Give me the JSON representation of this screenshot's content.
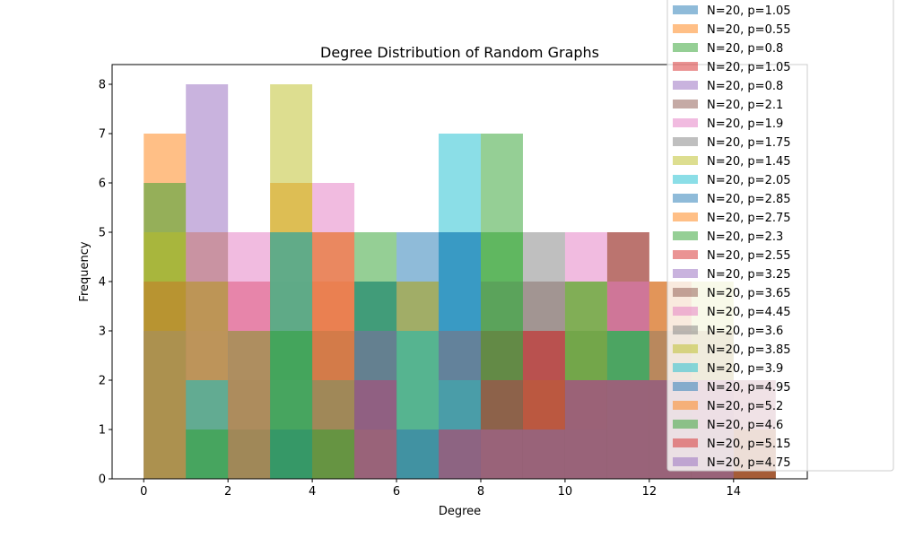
{
  "chart_data": {
    "type": "bar",
    "title": "Degree Distribution of Random Graphs",
    "xlabel": "Degree",
    "ylabel": "Frequency",
    "xlim": [
      -0.75,
      15.75
    ],
    "ylim": [
      0,
      8.4
    ],
    "xticks": [
      0,
      2,
      4,
      6,
      8,
      10,
      12,
      14
    ],
    "yticks": [
      0,
      1,
      2,
      3,
      4,
      5,
      6,
      7,
      8
    ],
    "bin_width": 1,
    "bar_alpha": 0.5,
    "legend_position": "top-right",
    "x": [
      0,
      1,
      2,
      3,
      4,
      5,
      6,
      7,
      8,
      9,
      10,
      11,
      12,
      13,
      14
    ],
    "series": [
      {
        "name": "N=20, p=1.05",
        "color": "#1f77b4",
        "values": [
          3,
          2,
          0,
          4,
          2,
          4,
          5,
          5,
          1,
          0,
          0,
          0,
          0,
          0,
          0
        ]
      },
      {
        "name": "N=20, p=0.55",
        "color": "#ff7f0e",
        "values": [
          7,
          5,
          2,
          6,
          4,
          1,
          0,
          0,
          0,
          0,
          0,
          0,
          0,
          0,
          0
        ]
      },
      {
        "name": "N=20, p=0.8",
        "color": "#2ca02c",
        "values": [
          6,
          3,
          3,
          5,
          2,
          3,
          3,
          1,
          0,
          0,
          0,
          0,
          0,
          0,
          0
        ]
      },
      {
        "name": "N=20, p=1.05",
        "color": "#d62728",
        "values": [
          4,
          4,
          4,
          5,
          3,
          2,
          1,
          2,
          0,
          0,
          0,
          0,
          0,
          0,
          0
        ]
      },
      {
        "name": "N=20, p=0.8",
        "color": "#9467bd",
        "values": [
          3,
          8,
          3,
          3,
          2,
          1,
          0,
          0,
          0,
          0,
          0,
          0,
          0,
          0,
          0
        ]
      },
      {
        "name": "N=20, p=2.1",
        "color": "#8c564b",
        "values": [
          0,
          3,
          2,
          3,
          5,
          2,
          1,
          2,
          1,
          1,
          0,
          0,
          0,
          0,
          0
        ]
      },
      {
        "name": "N=20, p=1.9",
        "color": "#e377c2",
        "values": [
          0,
          3,
          5,
          2,
          6,
          2,
          1,
          1,
          0,
          0,
          0,
          0,
          0,
          0,
          0
        ]
      },
      {
        "name": "N=20, p=1.75",
        "color": "#7f7f7f",
        "values": [
          0,
          2,
          3,
          5,
          3,
          2,
          4,
          1,
          0,
          0,
          0,
          0,
          0,
          0,
          0
        ]
      },
      {
        "name": "N=20, p=1.45",
        "color": "#bcbd22",
        "values": [
          5,
          4,
          1,
          8,
          2,
          1,
          4,
          0,
          0,
          0,
          0,
          0,
          0,
          0,
          0
        ]
      },
      {
        "name": "N=20, p=2.05",
        "color": "#17becf",
        "values": [
          0,
          2,
          3,
          5,
          2,
          1,
          3,
          7,
          2,
          0,
          0,
          0,
          0,
          0,
          0
        ]
      },
      {
        "name": "N=20, p=2.85",
        "color": "#1f77b4",
        "values": [
          0,
          0,
          1,
          1,
          2,
          4,
          1,
          5,
          1,
          1,
          0,
          0,
          0,
          0,
          0
        ]
      },
      {
        "name": "N=20, p=2.75",
        "color": "#ff7f0e",
        "values": [
          0,
          0,
          3,
          0,
          5,
          1,
          0,
          2,
          3,
          0,
          0,
          0,
          0,
          0,
          0
        ]
      },
      {
        "name": "N=20, p=2.3",
        "color": "#2ca02c",
        "values": [
          0,
          1,
          0,
          3,
          1,
          5,
          0,
          3,
          7,
          1,
          0,
          0,
          0,
          0,
          0
        ]
      },
      {
        "name": "N=20, p=2.55",
        "color": "#d62728",
        "values": [
          0,
          0,
          0,
          0,
          0,
          2,
          0,
          1,
          3,
          3,
          2,
          5,
          0,
          0,
          0
        ]
      },
      {
        "name": "N=20, p=3.25",
        "color": "#9467bd",
        "values": [
          0,
          0,
          0,
          0,
          0,
          3,
          0,
          3,
          2,
          2,
          1,
          3,
          1,
          2,
          0
        ]
      },
      {
        "name": "N=20, p=3.65",
        "color": "#8c564b",
        "values": [
          0,
          0,
          0,
          0,
          0,
          0,
          0,
          1,
          1,
          4,
          2,
          5,
          4,
          2,
          1
        ]
      },
      {
        "name": "N=20, p=4.45",
        "color": "#e377c2",
        "values": [
          0,
          0,
          0,
          0,
          0,
          0,
          0,
          1,
          2,
          2,
          5,
          4,
          2,
          2,
          1
        ]
      },
      {
        "name": "N=20, p=3.6",
        "color": "#7f7f7f",
        "values": [
          0,
          0,
          0,
          0,
          0,
          0,
          0,
          1,
          4,
          5,
          3,
          2,
          1,
          3,
          0
        ]
      },
      {
        "name": "N=20, p=3.85",
        "color": "#bcbd22",
        "values": [
          0,
          0,
          0,
          0,
          0,
          0,
          0,
          1,
          1,
          2,
          4,
          3,
          2,
          4,
          0
        ]
      },
      {
        "name": "N=20, p=3.9",
        "color": "#17becf",
        "values": [
          0,
          0,
          0,
          0,
          0,
          0,
          0,
          2,
          2,
          2,
          1,
          3,
          2,
          3,
          0
        ]
      },
      {
        "name": "N=20, p=4.95",
        "color": "#1f77b4",
        "values": [
          0,
          0,
          0,
          0,
          0,
          0,
          0,
          1,
          1,
          2,
          2,
          2,
          3,
          2,
          2
        ]
      },
      {
        "name": "N=20, p=5.2",
        "color": "#ff7f0e",
        "values": [
          0,
          0,
          0,
          0,
          0,
          0,
          0,
          0,
          1,
          2,
          2,
          2,
          4,
          3,
          1
        ]
      },
      {
        "name": "N=20, p=4.6",
        "color": "#2ca02c",
        "values": [
          0,
          0,
          0,
          0,
          0,
          0,
          0,
          1,
          5,
          1,
          4,
          3,
          2,
          1,
          1
        ]
      },
      {
        "name": "N=20, p=5.15",
        "color": "#d62728",
        "values": [
          0,
          0,
          0,
          0,
          0,
          0,
          0,
          1,
          2,
          3,
          2,
          2,
          2,
          2,
          2
        ]
      },
      {
        "name": "N=20, p=4.75",
        "color": "#9467bd",
        "values": [
          0,
          0,
          0,
          0,
          0,
          0,
          0,
          1,
          1,
          1,
          2,
          2,
          2,
          2,
          0
        ]
      }
    ]
  }
}
